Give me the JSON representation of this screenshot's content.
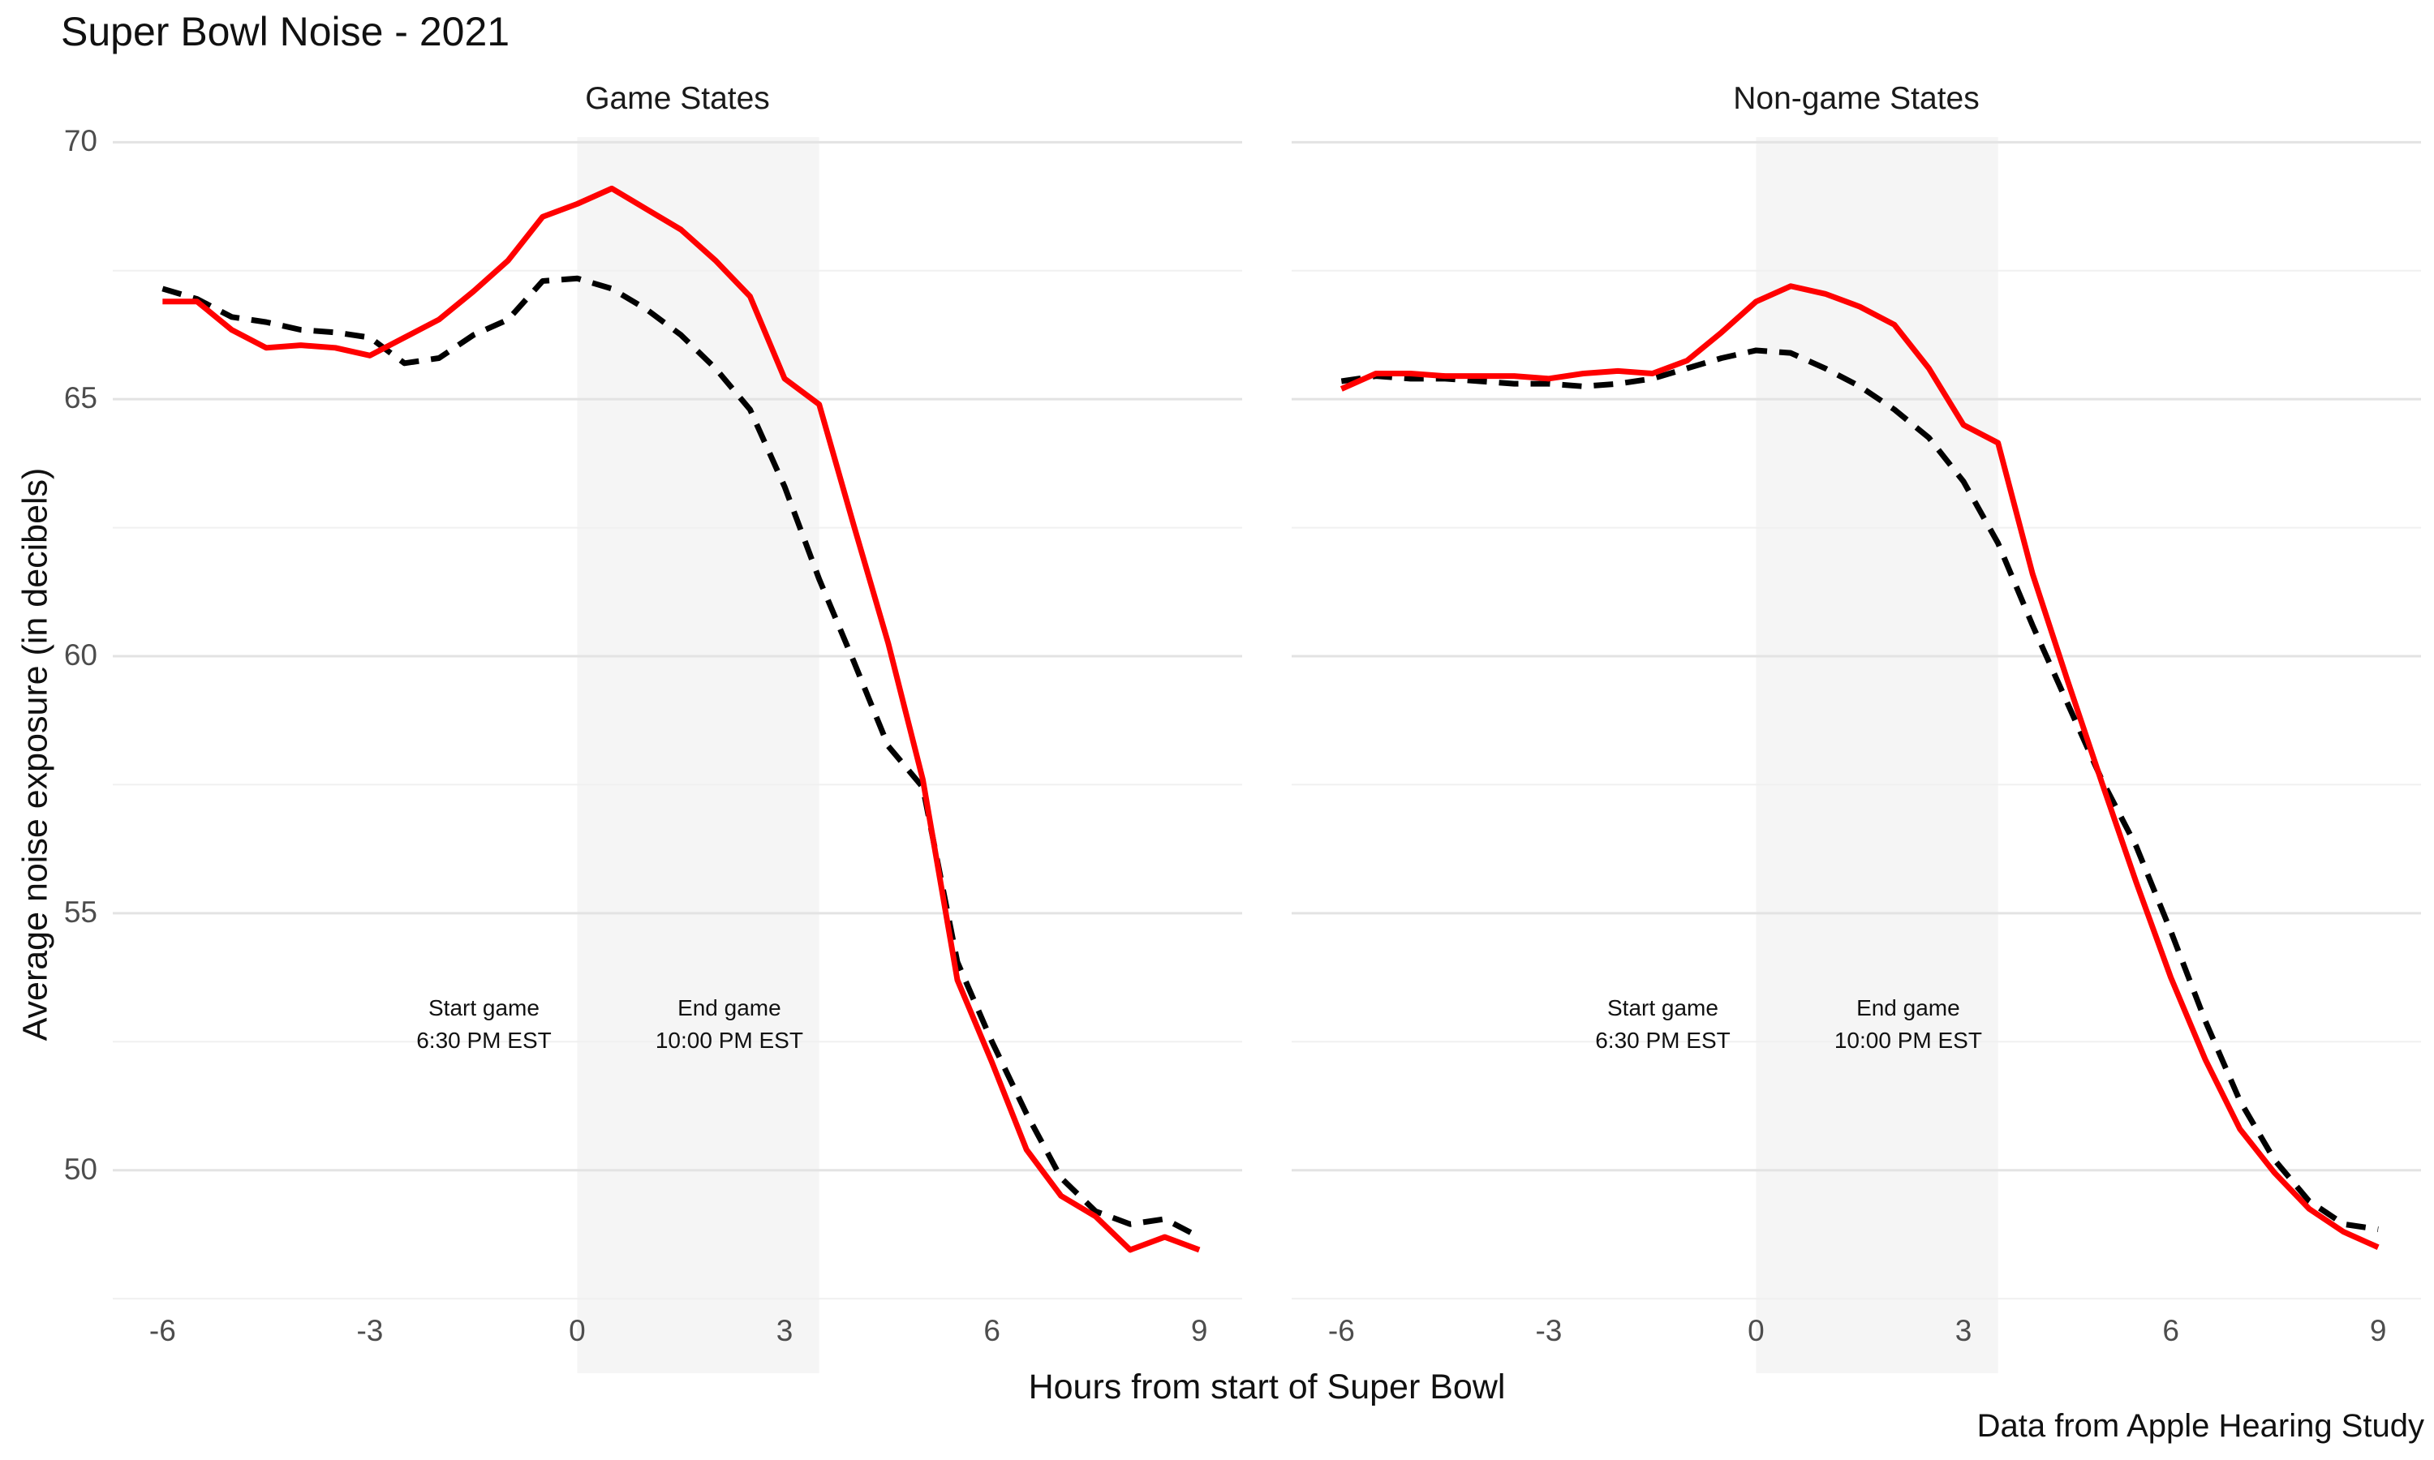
{
  "title": "Super Bowl Noise - 2021",
  "footer": "Data from Apple Hearing Study",
  "axes": {
    "x_label": "Hours from start of Super Bowl",
    "y_label": "Average noise exposure (in decibels)",
    "x_ticks": [
      -6,
      -3,
      0,
      3,
      6,
      9
    ],
    "y_ticks": [
      50,
      55,
      60,
      65,
      70
    ],
    "y_minor_ticks": [
      47.5,
      52.5,
      57.5,
      62.5,
      67.5
    ],
    "x_range": [
      -6.72,
      9.62
    ],
    "y_range": [
      46.05,
      70.1
    ],
    "grid_x": "off",
    "grid_y": "on"
  },
  "shaded_region": {
    "x_from": 0,
    "x_to": 3.5,
    "color": "#f5f5f5"
  },
  "annotations": {
    "items": [
      {
        "x": -1.35,
        "lines": [
          "Start game",
          "6:30 PM EST"
        ]
      },
      {
        "x": 2.2,
        "lines": [
          "End game",
          "10:00 PM EST"
        ]
      }
    ]
  },
  "colors": {
    "red_line": "#ff0000",
    "dashed_line": "#000000",
    "grid_major": "#e3e3e3",
    "grid_minor": "#f0f0f0",
    "tick_label": "#4d4d4d"
  },
  "chart_data": [
    {
      "type": "line",
      "title": "Game States",
      "xlabel": "Hours from start of Super Bowl",
      "ylabel": "Average noise exposure (in decibels)",
      "xlim": [
        -6.72,
        9.62
      ],
      "ylim": [
        46.05,
        70.1
      ],
      "legend": "none",
      "x": [
        -6,
        -5.5,
        -5,
        -4.5,
        -4,
        -3.5,
        -3,
        -2.5,
        -2,
        -1.5,
        -1,
        -0.5,
        0,
        0.5,
        1,
        1.5,
        2,
        2.5,
        3,
        3.5,
        4,
        4.5,
        5,
        5.5,
        6,
        6.5,
        7,
        7.5,
        8,
        8.5,
        9
      ],
      "series": [
        {
          "name": "red_solid",
          "color": "#ff0000",
          "style": "solid",
          "values": [
            66.9,
            66.9,
            66.35,
            66.0,
            66.05,
            66.0,
            65.85,
            66.2,
            66.55,
            67.1,
            67.7,
            68.55,
            68.8,
            69.1,
            68.7,
            68.3,
            67.7,
            67.0,
            65.4,
            64.9,
            62.55,
            60.25,
            57.6,
            53.7,
            52.1,
            50.4,
            49.5,
            49.1,
            48.45,
            48.7,
            48.45
          ]
        },
        {
          "name": "black_dashed",
          "color": "#000000",
          "style": "dashed",
          "values": [
            67.15,
            66.95,
            66.6,
            66.5,
            66.35,
            66.3,
            66.2,
            65.7,
            65.8,
            66.25,
            66.55,
            67.3,
            67.35,
            67.15,
            66.75,
            66.25,
            65.6,
            64.8,
            63.3,
            61.5,
            59.9,
            58.25,
            57.45,
            54.05,
            52.5,
            51.1,
            49.85,
            49.2,
            48.95,
            49.05,
            48.7
          ]
        }
      ]
    },
    {
      "type": "line",
      "title": "Non-game States",
      "xlabel": "Hours from start of Super Bowl",
      "ylabel": "Average noise exposure (in decibels)",
      "xlim": [
        -6.72,
        9.62
      ],
      "ylim": [
        46.05,
        70.1
      ],
      "legend": "none",
      "x": [
        -6,
        -5.5,
        -5,
        -4.5,
        -4,
        -3.5,
        -3,
        -2.5,
        -2,
        -1.5,
        -1,
        -0.5,
        0,
        0.5,
        1,
        1.5,
        2,
        2.5,
        3,
        3.5,
        4,
        4.5,
        5,
        5.5,
        6,
        6.5,
        7,
        7.5,
        8,
        8.5,
        9
      ],
      "series": [
        {
          "name": "red_solid",
          "color": "#ff0000",
          "style": "solid",
          "values": [
            65.2,
            65.5,
            65.5,
            65.45,
            65.45,
            65.45,
            65.4,
            65.5,
            65.55,
            65.5,
            65.75,
            66.3,
            66.9,
            67.2,
            67.05,
            66.8,
            66.45,
            65.6,
            64.5,
            64.15,
            61.6,
            59.55,
            57.55,
            55.6,
            53.75,
            52.15,
            50.8,
            49.95,
            49.25,
            48.8,
            48.5
          ]
        },
        {
          "name": "black_dashed",
          "color": "#000000",
          "style": "dashed",
          "values": [
            65.35,
            65.45,
            65.4,
            65.4,
            65.35,
            65.3,
            65.3,
            65.25,
            65.3,
            65.4,
            65.6,
            65.8,
            65.95,
            65.9,
            65.6,
            65.25,
            64.8,
            64.25,
            63.4,
            62.2,
            60.6,
            59.1,
            57.6,
            56.3,
            54.65,
            52.9,
            51.35,
            50.2,
            49.4,
            48.95,
            48.85
          ]
        }
      ]
    }
  ]
}
